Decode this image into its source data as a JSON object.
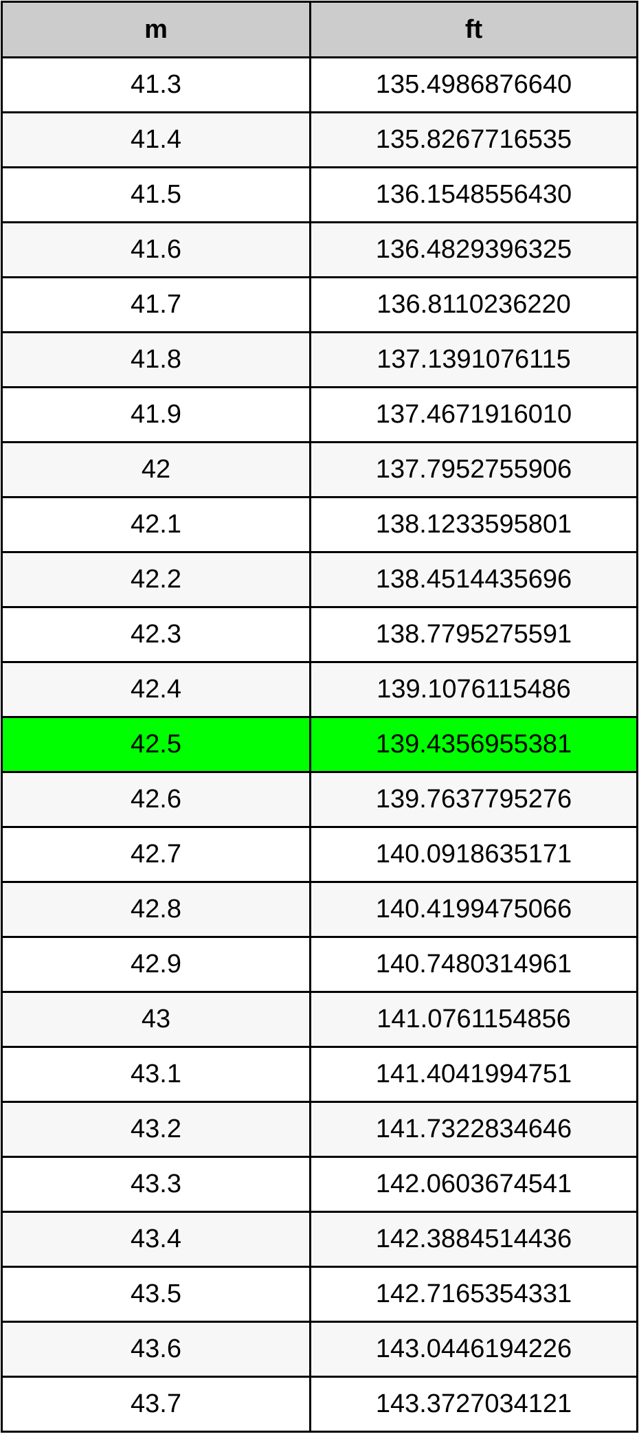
{
  "table": {
    "headers": [
      "m",
      "ft"
    ],
    "highlight_color": "#00ff00",
    "highlighted_row": 12,
    "rows": [
      [
        "41.3",
        "135.4986876640"
      ],
      [
        "41.4",
        "135.8267716535"
      ],
      [
        "41.5",
        "136.1548556430"
      ],
      [
        "41.6",
        "136.4829396325"
      ],
      [
        "41.7",
        "136.8110236220"
      ],
      [
        "41.8",
        "137.1391076115"
      ],
      [
        "41.9",
        "137.4671916010"
      ],
      [
        "42",
        "137.7952755906"
      ],
      [
        "42.1",
        "138.1233595801"
      ],
      [
        "42.2",
        "138.4514435696"
      ],
      [
        "42.3",
        "138.7795275591"
      ],
      [
        "42.4",
        "139.1076115486"
      ],
      [
        "42.5",
        "139.4356955381"
      ],
      [
        "42.6",
        "139.7637795276"
      ],
      [
        "42.7",
        "140.0918635171"
      ],
      [
        "42.8",
        "140.4199475066"
      ],
      [
        "42.9",
        "140.7480314961"
      ],
      [
        "43",
        "141.0761154856"
      ],
      [
        "43.1",
        "141.4041994751"
      ],
      [
        "43.2",
        "141.7322834646"
      ],
      [
        "43.3",
        "142.0603674541"
      ],
      [
        "43.4",
        "142.3884514436"
      ],
      [
        "43.5",
        "142.7165354331"
      ],
      [
        "43.6",
        "143.0446194226"
      ],
      [
        "43.7",
        "143.3727034121"
      ]
    ]
  }
}
